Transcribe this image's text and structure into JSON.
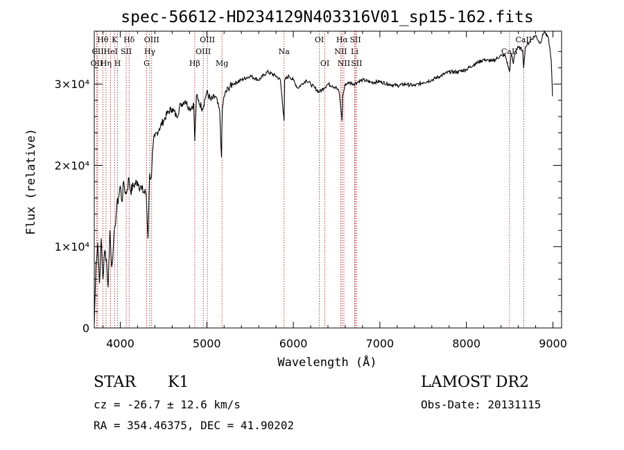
{
  "chart_data": {
    "type": "line",
    "title": "spec-56612-HD234129N403316V01_sp15-162.fits",
    "xlabel": "Wavelength (Å)",
    "ylabel": "Flux (relative)",
    "xlim": [
      3700,
      9100
    ],
    "ylim": [
      0,
      36500
    ],
    "x_ticks": [
      4000,
      5000,
      6000,
      7000,
      8000,
      9000
    ],
    "x_tick_labels": [
      "4000",
      "5000",
      "6000",
      "7000",
      "8000",
      "9000"
    ],
    "y_ticks": [
      0,
      10000,
      20000,
      30000
    ],
    "y_tick_labels": [
      "0",
      "1×10⁴",
      "2×10⁴",
      "3×10⁴"
    ],
    "grid": false,
    "series": [
      {
        "x": [
          3700,
          3720,
          3740,
          3760,
          3780,
          3800,
          3820,
          3840,
          3860,
          3880,
          3900,
          3920,
          3940,
          3960,
          3980,
          4000,
          4020,
          4040,
          4060,
          4080,
          4100,
          4120,
          4150,
          4200,
          4250,
          4300,
          4320,
          4340,
          4360,
          4380,
          4400,
          4450,
          4500,
          4550,
          4600,
          4650,
          4700,
          4750,
          4800,
          4850,
          4861,
          4880,
          4900,
          4950,
          5000,
          5050,
          5100,
          5150,
          5170,
          5180,
          5200,
          5250,
          5300,
          5400,
          5500,
          5600,
          5700,
          5800,
          5850,
          5890,
          5893,
          5900,
          5950,
          6000,
          6050,
          6100,
          6150,
          6200,
          6250,
          6300,
          6350,
          6400,
          6450,
          6500,
          6530,
          6563,
          6570,
          6600,
          6650,
          6700,
          6750,
          6800,
          6900,
          7000,
          7100,
          7200,
          7300,
          7400,
          7500,
          7600,
          7700,
          7800,
          7900,
          8000,
          8100,
          8200,
          8300,
          8400,
          8450,
          8498,
          8520,
          8542,
          8560,
          8600,
          8650,
          8662,
          8680,
          8700,
          8750,
          8800,
          8850,
          8900,
          8950,
          8980,
          8995
        ],
        "y": [
          500,
          8000,
          10500,
          5500,
          11000,
          6000,
          9500,
          8500,
          5000,
          12000,
          7500,
          10000,
          12500,
          15000,
          16000,
          17500,
          15500,
          18000,
          16500,
          17000,
          18500,
          16800,
          17500,
          18000,
          17000,
          16500,
          11000,
          19000,
          18500,
          22500,
          23500,
          24500,
          25500,
          26500,
          27000,
          26000,
          27500,
          28000,
          27000,
          27500,
          23000,
          28500,
          28000,
          27000,
          29000,
          28000,
          28500,
          26500,
          21000,
          27000,
          28500,
          29500,
          30000,
          30500,
          31000,
          30500,
          31500,
          31000,
          30500,
          26000,
          25500,
          30500,
          31000,
          30500,
          29500,
          30000,
          30500,
          30000,
          29500,
          29000,
          29500,
          30000,
          29800,
          29500,
          29000,
          25500,
          28500,
          30000,
          30200,
          30000,
          30300,
          30500,
          30200,
          30300,
          30000,
          29800,
          30000,
          29800,
          30200,
          30500,
          31000,
          31500,
          31500,
          31800,
          32500,
          33000,
          32800,
          33500,
          33500,
          31500,
          33800,
          32500,
          34000,
          34500,
          34200,
          32000,
          34500,
          34800,
          35500,
          36000,
          35000,
          36500,
          35500,
          33000,
          28500
        ]
      }
    ],
    "lines": [
      {
        "name": "Hθ",
        "x": 3798,
        "row": 1
      },
      {
        "name": "CII",
        "x": 3740,
        "row": 2
      },
      {
        "name": "OII",
        "x": 3727,
        "row": 3
      },
      {
        "name": "Hη",
        "x": 3835,
        "row": 3
      },
      {
        "name": "HeI",
        "x": 3889,
        "row": 2
      },
      {
        "name": "K",
        "x": 3934,
        "row": 1
      },
      {
        "name": "H",
        "x": 3969,
        "row": 3
      },
      {
        "name": "SII",
        "x": 4069,
        "row": 2
      },
      {
        "name": "Hδ",
        "x": 4102,
        "row": 1
      },
      {
        "name": "G",
        "x": 4305,
        "row": 3
      },
      {
        "name": "OIII",
        "x": 4363,
        "row": 1
      },
      {
        "name": "Hγ",
        "x": 4341,
        "row": 2
      },
      {
        "name": "Hβ",
        "x": 4861,
        "row": 3
      },
      {
        "name": "OIII",
        "x": 5007,
        "row": 1
      },
      {
        "name": "OIII",
        "x": 4959,
        "row": 2
      },
      {
        "name": "Mg",
        "x": 5175,
        "row": 3
      },
      {
        "name": "Na",
        "x": 5893,
        "row": 2
      },
      {
        "name": "OI",
        "x": 6300,
        "row": 1
      },
      {
        "name": "OI",
        "x": 6364,
        "row": 3
      },
      {
        "name": "Hα",
        "x": 6563,
        "row": 1
      },
      {
        "name": "NII",
        "x": 6548,
        "row": 2
      },
      {
        "name": "NII",
        "x": 6584,
        "row": 3
      },
      {
        "name": "SII",
        "x": 6717,
        "row": 1
      },
      {
        "name": "Li",
        "x": 6708,
        "row": 2
      },
      {
        "name": "SII",
        "x": 6731,
        "row": 3
      },
      {
        "name": "CaII",
        "x": 8662,
        "row": 1
      },
      {
        "name": "CaII",
        "x": 8498,
        "row": 2
      }
    ]
  },
  "info": {
    "object_class": "STAR",
    "subclass": "K1",
    "survey": "LAMOST DR2",
    "cz": "cz = -26.7 ± 12.6 km/s",
    "obs_date": "Obs-Date: 20131115",
    "radec": "RA = 354.46375, DEC =  41.90202"
  }
}
